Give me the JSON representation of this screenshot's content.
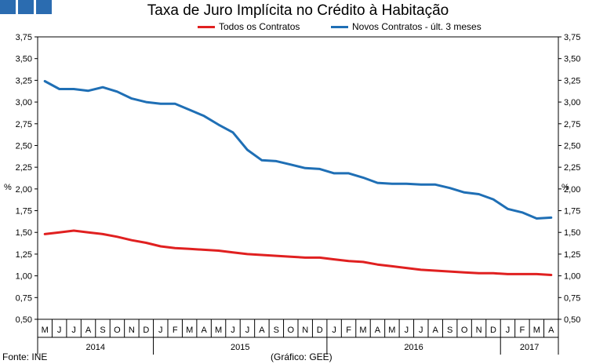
{
  "header": {
    "title": "Taxa de Juro Implícita no Crédito à Habitação"
  },
  "footer": {
    "source": "Fonte: INE",
    "credit": "(Gráfico: GEE)"
  },
  "chart_data": {
    "type": "line",
    "title": "Taxa de Juro Implícita no Crédito à Habitação",
    "ylabel_left": "%",
    "ylabel_right": "%",
    "ylim": [
      0.5,
      3.75
    ],
    "ytick_step": 0.25,
    "yticks": [
      "0,50",
      "0,75",
      "1,00",
      "1,25",
      "1,50",
      "1,75",
      "2,00",
      "2,25",
      "2,50",
      "2,75",
      "3,00",
      "3,25",
      "3,50",
      "3,75"
    ],
    "months": [
      "M",
      "J",
      "J",
      "A",
      "S",
      "O",
      "N",
      "D",
      "J",
      "F",
      "M",
      "A",
      "M",
      "J",
      "J",
      "A",
      "S",
      "O",
      "N",
      "D",
      "J",
      "F",
      "M",
      "A",
      "M",
      "J",
      "J",
      "A",
      "S",
      "O",
      "N",
      "D",
      "J",
      "F",
      "M",
      "A"
    ],
    "years": [
      {
        "label": "2014",
        "start": 0,
        "end": 8
      },
      {
        "label": "2015",
        "start": 8,
        "end": 20
      },
      {
        "label": "2016",
        "start": 20,
        "end": 32
      },
      {
        "label": "2017",
        "start": 32,
        "end": 36
      }
    ],
    "legend_position": "top",
    "series": [
      {
        "name": "Todos os Contratos",
        "color": "#e02020",
        "values": [
          1.48,
          1.5,
          1.52,
          1.5,
          1.48,
          1.45,
          1.41,
          1.38,
          1.34,
          1.32,
          1.31,
          1.3,
          1.29,
          1.27,
          1.25,
          1.24,
          1.23,
          1.22,
          1.21,
          1.21,
          1.19,
          1.17,
          1.16,
          1.13,
          1.11,
          1.09,
          1.07,
          1.06,
          1.05,
          1.04,
          1.03,
          1.03,
          1.02,
          1.02,
          1.02,
          1.01
        ]
      },
      {
        "name": "Novos Contratos - últ. 3 meses",
        "color": "#1f6fb5",
        "values": [
          3.24,
          3.15,
          3.15,
          3.13,
          3.17,
          3.12,
          3.04,
          3.0,
          2.98,
          2.98,
          2.91,
          2.84,
          2.74,
          2.65,
          2.45,
          2.33,
          2.32,
          2.28,
          2.24,
          2.23,
          2.18,
          2.18,
          2.13,
          2.07,
          2.06,
          2.06,
          2.05,
          2.05,
          2.01,
          1.96,
          1.94,
          1.88,
          1.77,
          1.73,
          1.66,
          1.67
        ]
      }
    ]
  }
}
